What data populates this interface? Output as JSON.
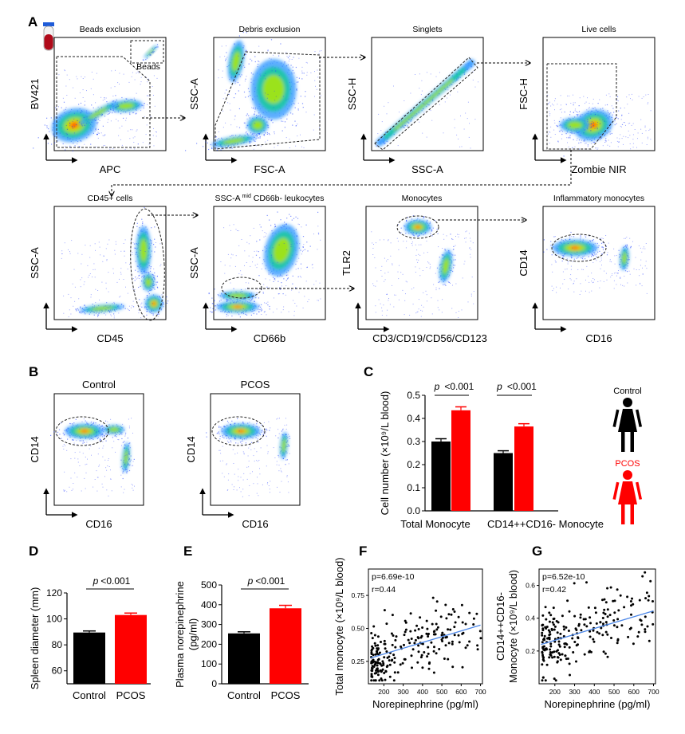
{
  "panels": {
    "a": "A",
    "b": "B",
    "c": "C",
    "d": "D",
    "e": "E",
    "f": "F",
    "g": "G"
  },
  "flow_plots": [
    {
      "title": "Beads exclusion",
      "xlabel": "APC",
      "ylabel": "BV421",
      "annotation": "Beads"
    },
    {
      "title": "Debris exclusion",
      "xlabel": "FSC-A",
      "ylabel": "SSC-A"
    },
    {
      "title": "Singlets",
      "xlabel": "SSC-A",
      "ylabel": "SSC-H"
    },
    {
      "title": "Live cells",
      "xlabel": "Zombie NIR",
      "ylabel": "FSC-H"
    },
    {
      "title": "CD45+ cells",
      "xlabel": "CD45",
      "ylabel": "SSC-A"
    },
    {
      "title": "SSC-A mid CD66b- leukocytes",
      "title_main": "SSC-A",
      "title_sup": "mid",
      "title_rest": " CD66b- leukocytes",
      "xlabel": "CD66b",
      "ylabel": "SSC-A"
    },
    {
      "title": "Monocytes",
      "xlabel": "CD3/CD19/CD56/CD123",
      "ylabel": "TLR2"
    },
    {
      "title": "Inflammatory monocytes",
      "xlabel": "CD16",
      "ylabel": "CD14"
    },
    {
      "title": "Control",
      "xlabel": "CD16",
      "ylabel": "CD14"
    },
    {
      "title": "PCOS",
      "xlabel": "CD16",
      "ylabel": "CD14"
    }
  ],
  "legend": {
    "control": "Control",
    "pcos": "PCOS"
  },
  "colors": {
    "control": "#000000",
    "pcos": "#ff0000",
    "fit_line": "#4a86e8",
    "gate": "#222222"
  },
  "chart_data": [
    {
      "panel": "C",
      "type": "bar",
      "categories": [
        "Total Monocyte",
        "CD14++CD16- Monocyte"
      ],
      "series": [
        {
          "name": "Control",
          "values": [
            0.3,
            0.25
          ],
          "errors": [
            0.012,
            0.01
          ]
        },
        {
          "name": "PCOS",
          "values": [
            0.435,
            0.365
          ],
          "errors": [
            0.015,
            0.012
          ]
        }
      ],
      "ylabel": "Cell number (×10⁹/L blood)",
      "ylim": [
        0,
        0.5
      ],
      "yticks": [
        "0.0",
        "0.1",
        "0.2",
        "0.3",
        "0.4",
        "0.5"
      ],
      "annotations": [
        {
          "p_label": "p",
          "p_value": "<0.001"
        },
        {
          "p_label": "p",
          "p_value": "<0.001"
        }
      ]
    },
    {
      "panel": "D",
      "type": "bar",
      "categories": [
        "Control",
        "PCOS"
      ],
      "values": [
        89.5,
        103
      ],
      "errors": [
        1.2,
        1.5
      ],
      "ylabel": "Spleen diameter (mm)",
      "ylim": [
        50,
        120
      ],
      "yticks": [
        "60",
        "80",
        "100",
        "120"
      ],
      "annotation": {
        "p_label": "p",
        "p_value": "<0.001"
      }
    },
    {
      "panel": "E",
      "type": "bar",
      "categories": [
        "Control",
        "PCOS"
      ],
      "values": [
        255,
        382
      ],
      "errors": [
        8,
        15
      ],
      "ylabel": "Plasma norepinephrine (pg/ml)",
      "ylim": [
        0,
        500
      ],
      "yticks": [
        "0",
        "100",
        "200",
        "300",
        "400",
        "500"
      ],
      "annotation": {
        "p_label": "p",
        "p_value": "<0.001"
      }
    },
    {
      "panel": "F",
      "type": "scatter",
      "xlabel": "Norepinephrine (pg/ml)",
      "ylabel": "Total monocyte (×10⁹/L blood)",
      "xlim": [
        120,
        710
      ],
      "ylim": [
        0.08,
        0.95
      ],
      "xticks": [
        "200",
        "300",
        "400",
        "500",
        "600",
        "700"
      ],
      "yticks": [
        "0.25",
        "0.50",
        "0.75"
      ],
      "stats": {
        "p": "p=6.69e-10",
        "r": "r=0.44"
      },
      "fit": {
        "x": [
          130,
          700
        ],
        "y": [
          0.275,
          0.525
        ]
      },
      "n_points": 230
    },
    {
      "panel": "G",
      "type": "scatter",
      "xlabel": "Norepinephrine (pg/ml)",
      "ylabel_line1": "CD14++CD16-",
      "ylabel_line2": "Monocyte (×10⁹/L blood)",
      "xlim": [
        120,
        710
      ],
      "ylim": [
        0.0,
        0.7
      ],
      "xticks": [
        "200",
        "300",
        "400",
        "500",
        "600",
        "700"
      ],
      "yticks": [
        "0.2",
        "0.4",
        "0.6"
      ],
      "stats": {
        "p": "p=6.52e-10",
        "r": "r=0.42"
      },
      "fit": {
        "x": [
          130,
          700
        ],
        "y": [
          0.24,
          0.445
        ]
      },
      "n_points": 230
    }
  ]
}
